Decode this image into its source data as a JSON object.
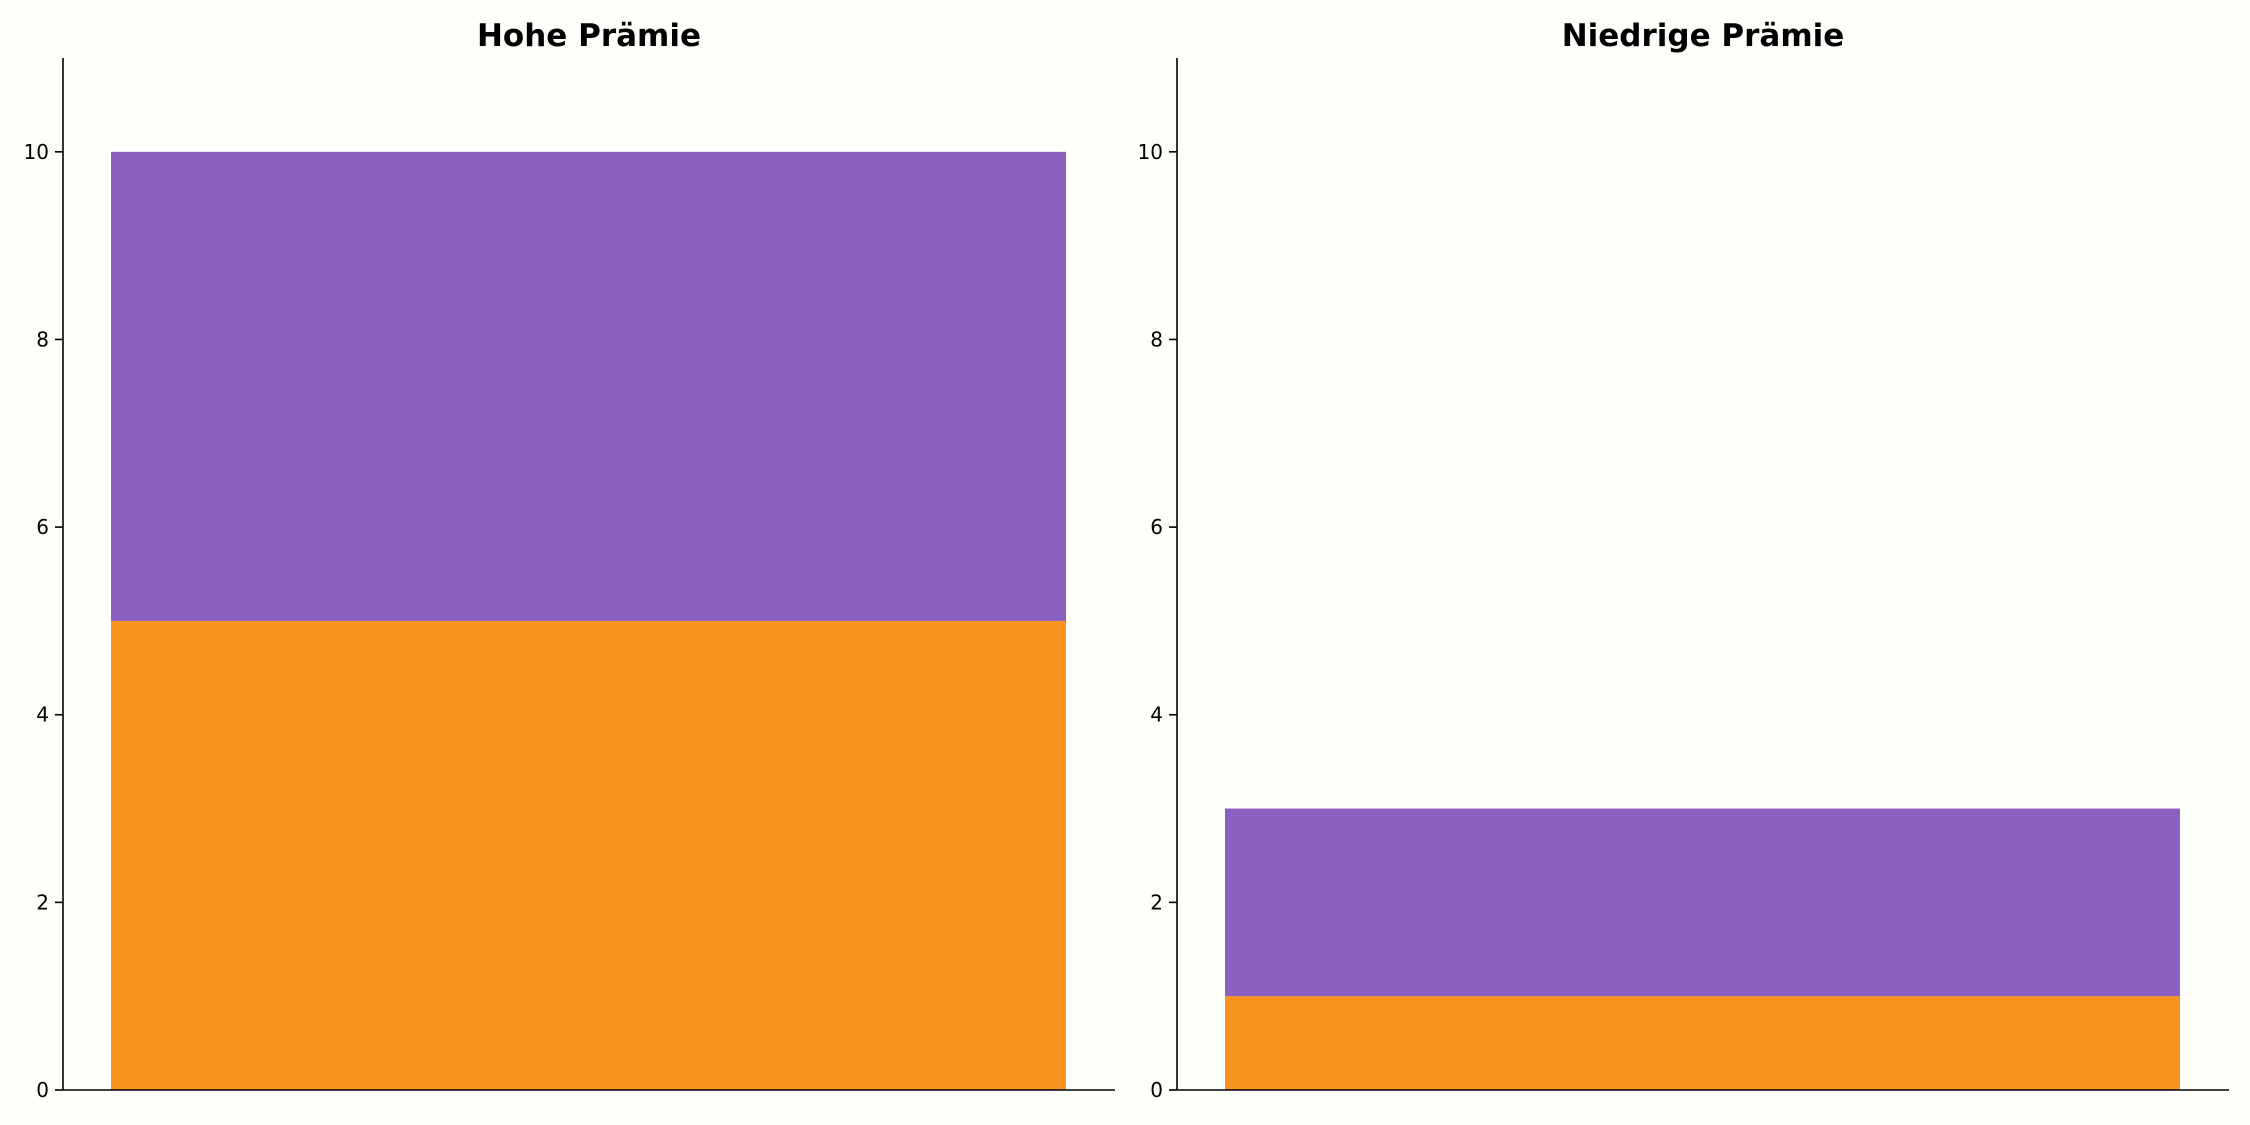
{
  "colors": {
    "background": "#fefefa",
    "segment_bottom": "#f7931e",
    "segment_top": "#8b60c0"
  },
  "chart_data": [
    {
      "type": "bar",
      "stacked": true,
      "title": "Hohe Prämie",
      "categories": [
        ""
      ],
      "series": [
        {
          "values": [
            5
          ],
          "color": "#f7931e"
        },
        {
          "values": [
            5
          ],
          "color": "#8b60c0"
        }
      ],
      "ylim": [
        0,
        11
      ],
      "yticks": [
        0,
        2,
        4,
        6,
        8,
        10
      ],
      "ytick_labels": [
        "0",
        "2",
        "4",
        "6",
        "8",
        "10"
      ],
      "grid": false,
      "legend": "none",
      "spines": [
        "left",
        "bottom"
      ]
    },
    {
      "type": "bar",
      "stacked": true,
      "title": "Niedrige Prämie",
      "categories": [
        ""
      ],
      "series": [
        {
          "values": [
            1
          ],
          "color": "#f7931e"
        },
        {
          "values": [
            2
          ],
          "color": "#8b60c0"
        }
      ],
      "ylim": [
        0,
        11
      ],
      "yticks": [
        0,
        2,
        4,
        6,
        8,
        10
      ],
      "ytick_labels": [
        "0",
        "2",
        "4",
        "6",
        "8",
        "10"
      ],
      "grid": false,
      "legend": "none",
      "spines": [
        "left",
        "bottom"
      ]
    }
  ]
}
